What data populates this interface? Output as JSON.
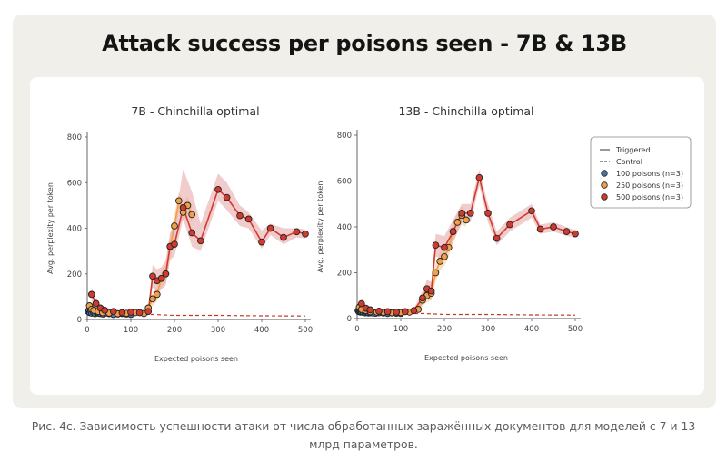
{
  "title": "Attack success per poisons seen - 7B & 13B",
  "caption": "Рис. 4c. Зависимость успешности атаки от числа обработанных заражённых документов для моделей с 7 и 13 млрд параметров.",
  "legend": {
    "triggered": "Triggered",
    "control": "Control",
    "p100": "100 poisons (n=3)",
    "p250": "250 poisons (n=3)",
    "p500": "500 poisons (n=3)"
  },
  "colors": {
    "p100": "#4c72b0",
    "p250": "#f0a04b",
    "p500": "#d13b2f",
    "band500": "#e6a3a3",
    "band250": "#f5c48a",
    "control": "#c0392b"
  },
  "chart_data": [
    {
      "type": "line",
      "title": "7B - Chinchilla optimal",
      "xlabel": "Expected poisons seen",
      "ylabel": "Avg. perplexity per token",
      "xlim": [
        0,
        500
      ],
      "ylim": [
        0,
        800
      ],
      "xticks": [
        0,
        100,
        200,
        300,
        400,
        500
      ],
      "yticks": [
        0,
        200,
        400,
        600,
        800
      ],
      "series": [
        {
          "name": "100 poisons (n=3)",
          "key": "p100",
          "x": [
            2,
            4,
            6,
            8,
            10,
            14,
            18,
            22,
            26,
            30,
            36,
            42,
            50,
            60,
            70,
            80,
            90,
            100
          ],
          "y": [
            35,
            40,
            30,
            38,
            28,
            32,
            25,
            30,
            27,
            26,
            24,
            28,
            25,
            22,
            24,
            26,
            24,
            22
          ]
        },
        {
          "name": "250 poisons (n=3)",
          "key": "p250",
          "x": [
            5,
            10,
            15,
            25,
            35,
            50,
            70,
            90,
            110,
            130,
            140,
            150,
            160,
            170,
            180,
            190,
            200,
            210,
            220,
            230,
            240
          ],
          "y": [
            60,
            45,
            40,
            35,
            30,
            28,
            25,
            27,
            30,
            26,
            50,
            90,
            110,
            180,
            200,
            320,
            410,
            520,
            470,
            500,
            460
          ],
          "band_lo": [
            40,
            30,
            28,
            25,
            22,
            20,
            18,
            20,
            22,
            18,
            30,
            60,
            80,
            140,
            160,
            270,
            360,
            480,
            430,
            460,
            420
          ],
          "band_hi": [
            80,
            60,
            52,
            45,
            38,
            36,
            32,
            34,
            38,
            34,
            70,
            120,
            140,
            220,
            240,
            370,
            460,
            560,
            510,
            540,
            500
          ]
        },
        {
          "name": "500 poisons (n=3)",
          "key": "p500",
          "x": [
            10,
            20,
            30,
            40,
            60,
            80,
            100,
            120,
            140,
            150,
            160,
            170,
            180,
            190,
            200,
            220,
            240,
            260,
            300,
            320,
            350,
            370,
            400,
            420,
            450,
            480,
            500
          ],
          "y": [
            110,
            70,
            50,
            40,
            35,
            30,
            32,
            30,
            35,
            190,
            170,
            180,
            200,
            320,
            330,
            490,
            380,
            345,
            570,
            535,
            455,
            440,
            340,
            400,
            360,
            385,
            375
          ],
          "band_lo": [
            80,
            50,
            35,
            28,
            25,
            22,
            24,
            22,
            26,
            140,
            120,
            130,
            150,
            260,
            280,
            440,
            320,
            300,
            520,
            480,
            410,
            400,
            310,
            370,
            330,
            360,
            355
          ],
          "band_hi": [
            140,
            90,
            65,
            52,
            45,
            40,
            42,
            40,
            45,
            240,
            220,
            230,
            260,
            380,
            420,
            660,
            560,
            420,
            640,
            600,
            500,
            470,
            390,
            420,
            400,
            400,
            395
          ]
        },
        {
          "name": "Control",
          "key": "control",
          "x": [
            0,
            100,
            150,
            200,
            300,
            400,
            500
          ],
          "y": [
            20,
            20,
            22,
            18,
            18,
            16,
            15
          ]
        }
      ]
    },
    {
      "type": "line",
      "title": "13B - Chinchilla optimal",
      "xlabel": "Expected poisons seen",
      "ylabel": "Avg. perplexity per token",
      "xlim": [
        0,
        500
      ],
      "ylim": [
        0,
        800
      ],
      "xticks": [
        0,
        100,
        200,
        300,
        400,
        500
      ],
      "yticks": [
        0,
        200,
        400,
        600,
        800
      ],
      "series": [
        {
          "name": "100 poisons (n=3)",
          "key": "p100",
          "x": [
            2,
            4,
            6,
            8,
            10,
            14,
            18,
            22,
            26,
            30,
            36,
            42,
            50,
            60,
            70,
            80,
            90,
            100
          ],
          "y": [
            35,
            30,
            32,
            28,
            30,
            27,
            25,
            26,
            24,
            25,
            24,
            23,
            25,
            24,
            22,
            24,
            23,
            22
          ]
        },
        {
          "name": "250 poisons (n=3)",
          "key": "p250",
          "x": [
            5,
            10,
            20,
            30,
            45,
            60,
            80,
            100,
            120,
            140,
            150,
            160,
            170,
            180,
            190,
            200,
            210,
            220,
            230,
            240,
            250
          ],
          "y": [
            50,
            40,
            35,
            30,
            28,
            27,
            25,
            26,
            28,
            40,
            80,
            100,
            110,
            200,
            250,
            270,
            310,
            380,
            420,
            450,
            430
          ],
          "band_lo": [
            35,
            28,
            24,
            22,
            20,
            19,
            18,
            19,
            20,
            28,
            55,
            70,
            80,
            160,
            210,
            230,
            270,
            340,
            380,
            410,
            400
          ],
          "band_hi": [
            70,
            55,
            48,
            40,
            36,
            35,
            32,
            34,
            36,
            60,
            110,
            140,
            150,
            240,
            290,
            310,
            350,
            420,
            460,
            490,
            460
          ]
        },
        {
          "name": "500 poisons (n=3)",
          "key": "p500",
          "x": [
            10,
            20,
            30,
            50,
            70,
            90,
            110,
            130,
            150,
            160,
            170,
            180,
            200,
            220,
            240,
            260,
            280,
            300,
            320,
            350,
            400,
            420,
            450,
            480,
            500
          ],
          "y": [
            65,
            45,
            38,
            32,
            30,
            28,
            30,
            35,
            90,
            130,
            120,
            320,
            310,
            380,
            460,
            460,
            615,
            460,
            350,
            410,
            470,
            390,
            400,
            380,
            370
          ],
          "band_lo": [
            45,
            32,
            28,
            24,
            22,
            20,
            22,
            26,
            60,
            90,
            80,
            270,
            260,
            330,
            420,
            420,
            580,
            420,
            320,
            380,
            440,
            370,
            380,
            360,
            355
          ],
          "band_hi": [
            85,
            58,
            48,
            40,
            38,
            36,
            38,
            44,
            120,
            170,
            160,
            370,
            360,
            430,
            500,
            500,
            650,
            500,
            380,
            440,
            500,
            410,
            420,
            400,
            385
          ]
        },
        {
          "name": "Control",
          "key": "control",
          "x": [
            0,
            100,
            150,
            200,
            300,
            400,
            500
          ],
          "y": [
            20,
            20,
            22,
            18,
            18,
            16,
            15
          ]
        }
      ]
    }
  ]
}
